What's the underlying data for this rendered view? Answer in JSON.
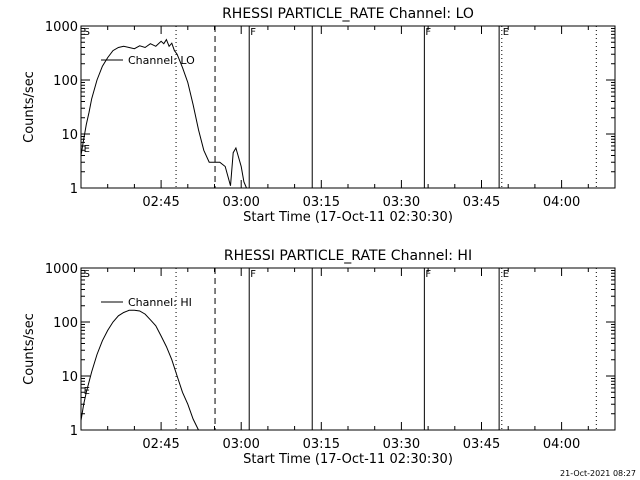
{
  "footer": {
    "timestamp": "21-Oct-2021 08:27"
  },
  "colors": {
    "background": "#ffffff",
    "ink": "#000000"
  },
  "chart_data": [
    {
      "type": "line",
      "title": "RHESSI PARTICLE_RATE Channel: LO",
      "xlabel": "Start Time (17-Oct-11 02:30:30)",
      "ylabel": "Counts/sec",
      "yscale": "log",
      "ylim": [
        1,
        1000
      ],
      "xlim_minutes": [
        0,
        100
      ],
      "x_ticks": [
        {
          "t": 15,
          "label": "02:45"
        },
        {
          "t": 30,
          "label": "03:00"
        },
        {
          "t": 45,
          "label": "03:15"
        },
        {
          "t": 60,
          "label": "03:30"
        },
        {
          "t": 75,
          "label": "03:45"
        },
        {
          "t": 90,
          "label": "04:00"
        }
      ],
      "y_ticks": [
        {
          "v": 1,
          "label": "1"
        },
        {
          "v": 10,
          "label": "10"
        },
        {
          "v": 100,
          "label": "100"
        },
        {
          "v": 1000,
          "label": "1000"
        }
      ],
      "legend": {
        "label": "Channel: LO",
        "position": "top-left"
      },
      "flags": [
        {
          "t": 0.3,
          "label": "S"
        },
        {
          "t": 0.3,
          "label": "E",
          "row": "low"
        },
        {
          "t": 31.5,
          "label": "F"
        },
        {
          "t": 64.3,
          "label": "F"
        },
        {
          "t": 78.8,
          "label": "E"
        }
      ],
      "vlines": [
        {
          "t": 17.8,
          "style": "dotted"
        },
        {
          "t": 25.1,
          "style": "dashed"
        },
        {
          "t": 31.5,
          "style": "solid"
        },
        {
          "t": 43.3,
          "style": "solid"
        },
        {
          "t": 64.3,
          "style": "solid"
        },
        {
          "t": 78.3,
          "style": "solid"
        },
        {
          "t": 78.8,
          "style": "dotted"
        },
        {
          "t": 96.5,
          "style": "dotted"
        }
      ],
      "series": [
        {
          "name": "Channel: LO",
          "x": [
            0,
            0.5,
            1,
            1.5,
            2,
            3,
            4,
            5,
            6,
            7,
            8,
            9,
            10,
            11,
            12,
            13,
            14,
            15,
            15.5,
            16,
            16.5,
            17,
            17.5,
            18,
            19,
            20,
            21,
            22,
            23,
            24,
            25,
            26,
            27,
            28,
            28.5,
            29,
            30,
            30.5,
            31
          ],
          "y": [
            4,
            8,
            15,
            25,
            45,
            100,
            180,
            260,
            350,
            400,
            420,
            400,
            380,
            430,
            400,
            470,
            420,
            520,
            470,
            560,
            420,
            480,
            350,
            300,
            170,
            90,
            35,
            12,
            5,
            3,
            3,
            3,
            2.5,
            1.1,
            4.5,
            5.5,
            2.5,
            1.3,
            1
          ]
        }
      ]
    },
    {
      "type": "line",
      "title": "RHESSI PARTICLE_RATE Channel: HI",
      "xlabel": "Start Time (17-Oct-11 02:30:30)",
      "ylabel": "Counts/sec",
      "yscale": "log",
      "ylim": [
        1,
        1000
      ],
      "xlim_minutes": [
        0,
        100
      ],
      "x_ticks": [
        {
          "t": 15,
          "label": "02:45"
        },
        {
          "t": 30,
          "label": "03:00"
        },
        {
          "t": 45,
          "label": "03:15"
        },
        {
          "t": 60,
          "label": "03:30"
        },
        {
          "t": 75,
          "label": "03:45"
        },
        {
          "t": 90,
          "label": "04:00"
        }
      ],
      "y_ticks": [
        {
          "v": 1,
          "label": "1"
        },
        {
          "v": 10,
          "label": "10"
        },
        {
          "v": 100,
          "label": "100"
        },
        {
          "v": 1000,
          "label": "1000"
        }
      ],
      "legend": {
        "label": "Channel: HI",
        "position": "top-left"
      },
      "flags": [
        {
          "t": 0.3,
          "label": "S"
        },
        {
          "t": 0.3,
          "label": "E",
          "row": "low"
        },
        {
          "t": 31.5,
          "label": "F"
        },
        {
          "t": 64.3,
          "label": "F"
        },
        {
          "t": 78.8,
          "label": "E"
        }
      ],
      "vlines": [
        {
          "t": 17.8,
          "style": "dotted"
        },
        {
          "t": 25.1,
          "style": "dashed"
        },
        {
          "t": 31.5,
          "style": "solid"
        },
        {
          "t": 43.3,
          "style": "solid"
        },
        {
          "t": 64.3,
          "style": "solid"
        },
        {
          "t": 78.3,
          "style": "solid"
        },
        {
          "t": 78.8,
          "style": "dotted"
        },
        {
          "t": 96.5,
          "style": "dotted"
        }
      ],
      "series": [
        {
          "name": "Channel: HI",
          "x": [
            0,
            0.5,
            1,
            2,
            3,
            4,
            5,
            6,
            7,
            8,
            9,
            10,
            11,
            12,
            13,
            14,
            15,
            16,
            17,
            18,
            19,
            20,
            21,
            22
          ],
          "y": [
            1.5,
            3,
            5,
            12,
            25,
            45,
            70,
            100,
            130,
            150,
            165,
            165,
            160,
            140,
            110,
            85,
            55,
            35,
            20,
            10,
            5,
            3,
            1.6,
            1
          ]
        }
      ]
    }
  ]
}
